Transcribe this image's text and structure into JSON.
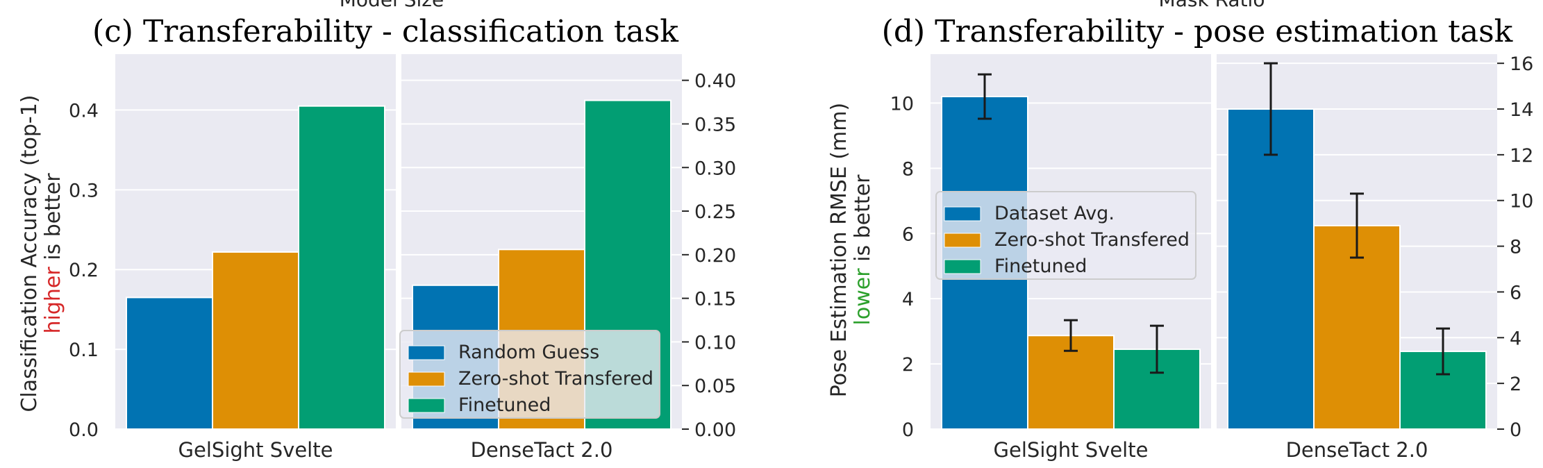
{
  "top_cut_labels": [
    "Model Size",
    "Mask Ratio"
  ],
  "chart_data": [
    {
      "type": "bar",
      "title": "(c) Transferability - classification task",
      "ylabel_lines": [
        "Classification Accuracy (top-1)",
        [
          "higher",
          " is better"
        ]
      ],
      "highlight_color": "#d62728",
      "colors": [
        "#0173b2",
        "#de8f05",
        "#029e73"
      ],
      "legend": {
        "placement": "lower-right",
        "entries": [
          "Random Guess",
          "Zero-shot Transfered",
          "Finetuned"
        ]
      },
      "grid": true,
      "panels": [
        {
          "category": "GelSight Svelte",
          "axis": "left",
          "ylim": [
            0,
            0.47
          ],
          "ticks": [
            0.0,
            0.1,
            0.2,
            0.3,
            0.4
          ],
          "tick_labels": [
            "0.0",
            "0.1",
            "0.2",
            "0.3",
            "0.4"
          ],
          "values": [
            0.165,
            0.222,
            0.405
          ],
          "errors": null
        },
        {
          "category": "DenseTact 2.0",
          "axis": "right",
          "ylim": [
            0,
            0.43
          ],
          "ticks": [
            0.0,
            0.05,
            0.1,
            0.15,
            0.2,
            0.25,
            0.3,
            0.35,
            0.4
          ],
          "tick_labels": [
            "0.00",
            "0.05",
            "0.10",
            "0.15",
            "0.20",
            "0.25",
            "0.30",
            "0.35",
            "0.40"
          ],
          "values": [
            0.165,
            0.206,
            0.377
          ],
          "errors": null
        }
      ]
    },
    {
      "type": "bar",
      "title": "(d) Transferability - pose estimation task",
      "ylabel_lines": [
        "Pose Estimation RMSE (mm)",
        [
          "lower",
          " is better"
        ]
      ],
      "highlight_color": "#2ca02c",
      "colors": [
        "#0173b2",
        "#de8f05",
        "#029e73"
      ],
      "legend": {
        "placement": "center-left",
        "entries": [
          "Dataset Avg.",
          "Zero-shot Transfered",
          "Finetuned"
        ]
      },
      "grid": true,
      "panels": [
        {
          "category": "GelSight Svelte",
          "axis": "left",
          "ylim": [
            0,
            11.5
          ],
          "ticks": [
            0,
            2,
            4,
            6,
            8,
            10
          ],
          "tick_labels": [
            "0",
            "2",
            "4",
            "6",
            "8",
            "10"
          ],
          "values": [
            10.2,
            2.87,
            2.45
          ],
          "errors": [
            0.68,
            0.47,
            0.72
          ]
        },
        {
          "category": "DenseTact 2.0",
          "axis": "right",
          "ylim": [
            0,
            16.4
          ],
          "ticks": [
            0,
            2,
            4,
            6,
            8,
            10,
            12,
            14,
            16
          ],
          "tick_labels": [
            "0",
            "2",
            "4",
            "6",
            "8",
            "10",
            "12",
            "14",
            "16"
          ],
          "values": [
            14.0,
            8.9,
            3.4
          ],
          "errors": [
            2.0,
            1.4,
            1.0
          ]
        }
      ]
    }
  ]
}
